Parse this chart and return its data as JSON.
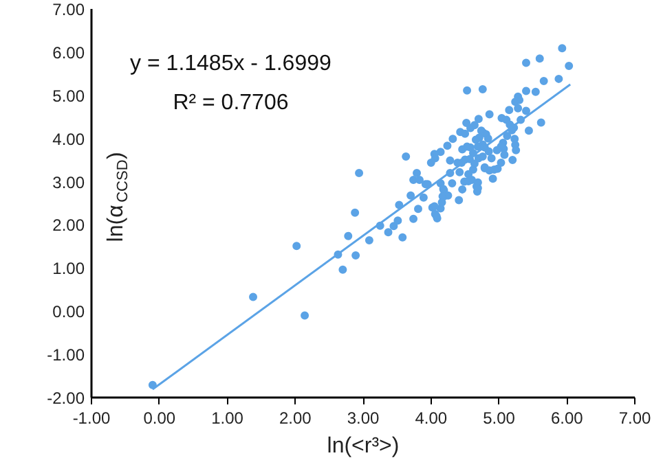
{
  "chart_data": {
    "type": "scatter",
    "xlabel": "ln(<r³>)",
    "ylabel": "ln(α$_{CCSD}$)",
    "annotations": [
      "y = 1.1485x - 1.6999",
      "R² = 0.7706"
    ],
    "xlim": [
      -1,
      7
    ],
    "ylim": [
      -2,
      7
    ],
    "xticks": [
      {
        "value": -1,
        "label": "-1.00"
      },
      {
        "value": 0,
        "label": "0.00"
      },
      {
        "value": 1,
        "label": "1.00"
      },
      {
        "value": 2,
        "label": "2.00"
      },
      {
        "value": 3,
        "label": "3.00"
      },
      {
        "value": 4,
        "label": "4.00"
      },
      {
        "value": 5,
        "label": "5.00"
      },
      {
        "value": 6,
        "label": "6.00"
      },
      {
        "value": 7,
        "label": "7.00"
      }
    ],
    "yticks": [
      {
        "value": -2,
        "label": "-2.00"
      },
      {
        "value": -1,
        "label": "-1.00"
      },
      {
        "value": 0,
        "label": "0.00"
      },
      {
        "value": 1,
        "label": "1.00"
      },
      {
        "value": 2,
        "label": "2.00"
      },
      {
        "value": 3,
        "label": "3.00"
      },
      {
        "value": 4,
        "label": "4.00"
      },
      {
        "value": 5,
        "label": "5.00"
      },
      {
        "value": 6,
        "label": "6.00"
      },
      {
        "value": 7,
        "label": "7.00"
      }
    ],
    "grid": false,
    "marker": "circle",
    "series": [
      {
        "color": "#5ba3e6",
        "x": [
          -0.1,
          1.38,
          2.02,
          2.14,
          2.63,
          2.7,
          2.94,
          2.88,
          2.78,
          2.89,
          3.09,
          3.25,
          3.37,
          3.45,
          3.51,
          3.53,
          3.58,
          3.7,
          3.74,
          3.81,
          3.89,
          4.02,
          4.06,
          4.09,
          4.14,
          4.16,
          4.19,
          4.25,
          4.19,
          4.31,
          4.14,
          4.41,
          4.46,
          4.49,
          4.55,
          4.68,
          4.67,
          4.91,
          3.79,
          3.74,
          3.83,
          3.92,
          4.28,
          4.42,
          4.62,
          4.79,
          4.98,
          5.4,
          5.6,
          5.93,
          6.03,
          5.88,
          5.66,
          5.54,
          5.4,
          4.53,
          4.76,
          4.86,
          5.28,
          5.3,
          5.24,
          5.28,
          5.4,
          5.15,
          5.04,
          5.11,
          5.16,
          5.22,
          5.19,
          5.32,
          5.62,
          5.44,
          5.12,
          5.23,
          5.06,
          5.07,
          5.03,
          4.97,
          5.08,
          5.24,
          5.25,
          5.2,
          5.03,
          4.52,
          4.64,
          4.7,
          4.43,
          4.5,
          4.58,
          4.74,
          4.77,
          4.81,
          4.84,
          4.71,
          4.66,
          4.76,
          4.69,
          4.79,
          4.58,
          4.46,
          4.53,
          4.62,
          4.7,
          4.76,
          4.89,
          4.85,
          4.32,
          4.24,
          4.14,
          4.05,
          4.06,
          4.0,
          3.63,
          4.28,
          4.39,
          4.45,
          4.5,
          4.57,
          4.64,
          4.79,
          4.86,
          4.93,
          4.55,
          4.6,
          4.69,
          4.69,
          3.95,
          4.18,
          4.17,
          4.05,
          4.08
        ],
        "values": [
          -1.71,
          0.33,
          1.51,
          -0.1,
          1.31,
          0.96,
          3.2,
          2.28,
          1.74,
          1.29,
          1.64,
          1.98,
          1.83,
          1.97,
          2.1,
          2.46,
          1.71,
          2.68,
          2.14,
          2.37,
          2.63,
          2.4,
          2.25,
          2.15,
          2.38,
          2.52,
          2.66,
          2.68,
          2.8,
          2.96,
          2.96,
          2.57,
          2.82,
          3.0,
          3.01,
          2.77,
          2.89,
          3.07,
          3.2,
          3.04,
          3.04,
          2.94,
          3.2,
          3.22,
          3.28,
          3.31,
          3.3,
          5.75,
          5.85,
          6.09,
          5.68,
          5.38,
          5.33,
          5.08,
          5.1,
          5.11,
          5.14,
          4.56,
          4.97,
          4.89,
          4.85,
          4.7,
          4.64,
          4.66,
          4.47,
          4.43,
          4.32,
          4.25,
          4.19,
          4.43,
          4.37,
          4.18,
          4.06,
          3.99,
          3.9,
          3.76,
          3.81,
          3.73,
          3.62,
          3.85,
          3.73,
          3.5,
          3.44,
          4.36,
          4.31,
          4.45,
          4.15,
          4.11,
          4.24,
          4.18,
          4.13,
          4.1,
          4.0,
          4.02,
          3.97,
          3.86,
          3.81,
          3.79,
          3.79,
          3.75,
          3.81,
          3.66,
          3.54,
          3.58,
          3.54,
          3.7,
          3.99,
          3.83,
          3.69,
          3.64,
          3.54,
          3.44,
          3.58,
          3.49,
          3.44,
          3.44,
          3.51,
          3.52,
          3.42,
          3.33,
          3.26,
          3.28,
          3.17,
          3.04,
          2.98,
          2.85,
          2.94,
          2.83,
          2.66,
          2.43,
          2.2
        ]
      },
      {
        "type": "line",
        "color": "#5ba3e6",
        "x": [
          -0.1,
          6.05
        ],
        "values": [
          -1.81,
          5.25
        ],
        "marker": "none"
      }
    ]
  }
}
